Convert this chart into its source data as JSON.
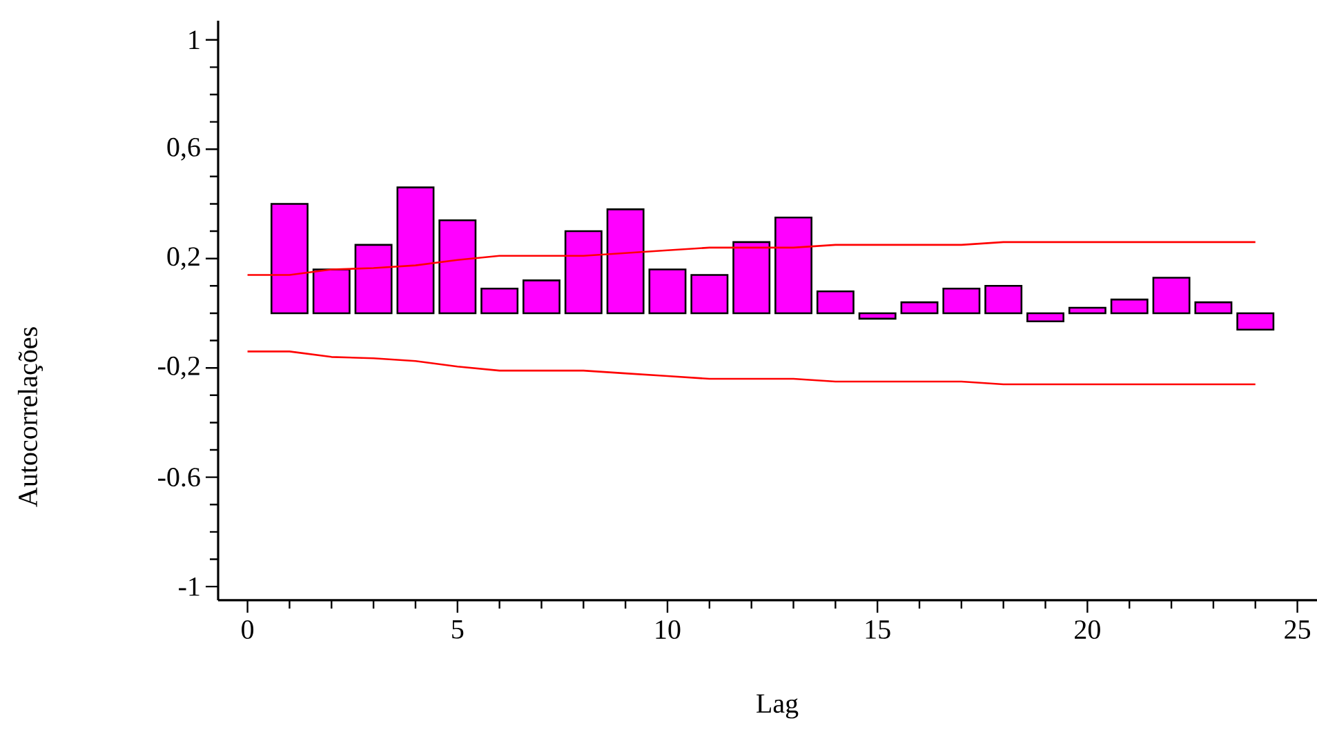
{
  "chart_data": {
    "type": "bar",
    "xlabel": "Lag",
    "ylabel": "Autocorrelações",
    "xlim": [
      -0.7,
      25.5
    ],
    "ylim": [
      -1.05,
      1.07
    ],
    "xticks": [
      0,
      5,
      10,
      15,
      20,
      25
    ],
    "yticks": [
      1,
      {
        "value": 0.6,
        "label": "0,6"
      },
      {
        "value": 0.2,
        "label": "0,2"
      },
      {
        "value": -0.2,
        "label": "-0,2"
      },
      {
        "value": -0.6,
        "label": "-0.6"
      },
      -1
    ],
    "series": [
      {
        "color": "#ff00ff",
        "x": [
          1,
          2,
          3,
          4,
          5,
          6,
          7,
          8,
          9,
          10,
          11,
          12,
          13,
          14,
          15,
          16,
          17,
          18,
          19,
          20,
          21,
          22,
          23,
          24
        ],
        "values": [
          0.4,
          0.16,
          0.25,
          0.46,
          0.34,
          0.09,
          0.12,
          0.3,
          0.38,
          0.16,
          0.14,
          0.26,
          0.35,
          0.08,
          -0.02,
          0.04,
          0.09,
          0.1,
          -0.03,
          0.02,
          0.05,
          0.13,
          0.04,
          -0.06
        ]
      },
      {
        "type": "line",
        "color": "#ff0000",
        "x": [
          0,
          1,
          2,
          3,
          4,
          5,
          6,
          7,
          8,
          9,
          10,
          11,
          12,
          13,
          14,
          15,
          16,
          17,
          18,
          19,
          20,
          21,
          22,
          23,
          24
        ],
        "values": [
          0.14,
          0.14,
          0.16,
          0.165,
          0.175,
          0.195,
          0.21,
          0.21,
          0.21,
          0.22,
          0.23,
          0.24,
          0.24,
          0.24,
          0.25,
          0.25,
          0.25,
          0.25,
          0.26,
          0.26,
          0.26,
          0.26,
          0.26,
          0.26,
          0.26
        ]
      },
      {
        "type": "line",
        "color": "#ff0000",
        "x": [
          0,
          1,
          2,
          3,
          4,
          5,
          6,
          7,
          8,
          9,
          10,
          11,
          12,
          13,
          14,
          15,
          16,
          17,
          18,
          19,
          20,
          21,
          22,
          23,
          24
        ],
        "values": [
          -0.14,
          -0.14,
          -0.16,
          -0.165,
          -0.175,
          -0.195,
          -0.21,
          -0.21,
          -0.21,
          -0.22,
          -0.23,
          -0.24,
          -0.24,
          -0.24,
          -0.25,
          -0.25,
          -0.25,
          -0.25,
          -0.26,
          -0.26,
          -0.26,
          -0.26,
          -0.26,
          -0.26,
          -0.26
        ]
      }
    ]
  }
}
